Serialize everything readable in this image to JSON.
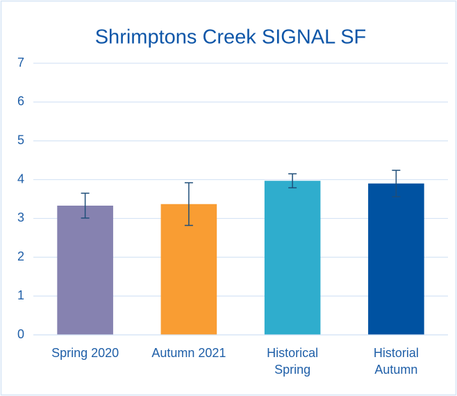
{
  "chart_data": {
    "type": "bar",
    "title": "Shrimptons Creek SIGNAL SF",
    "categories": [
      "Spring 2020",
      "Autumn 2021",
      "Historical Spring",
      "Historial Autumn"
    ],
    "values": [
      3.33,
      3.37,
      3.97,
      3.9
    ],
    "errors": [
      0.32,
      0.55,
      0.18,
      0.34
    ],
    "colors": [
      "#8682b0",
      "#f99d33",
      "#2fadcd",
      "#0052a1"
    ],
    "error_color": "#1f4e79",
    "ylim": [
      0,
      7
    ],
    "yticks": [
      0,
      1,
      2,
      3,
      4,
      5,
      6,
      7
    ],
    "grid": true
  }
}
